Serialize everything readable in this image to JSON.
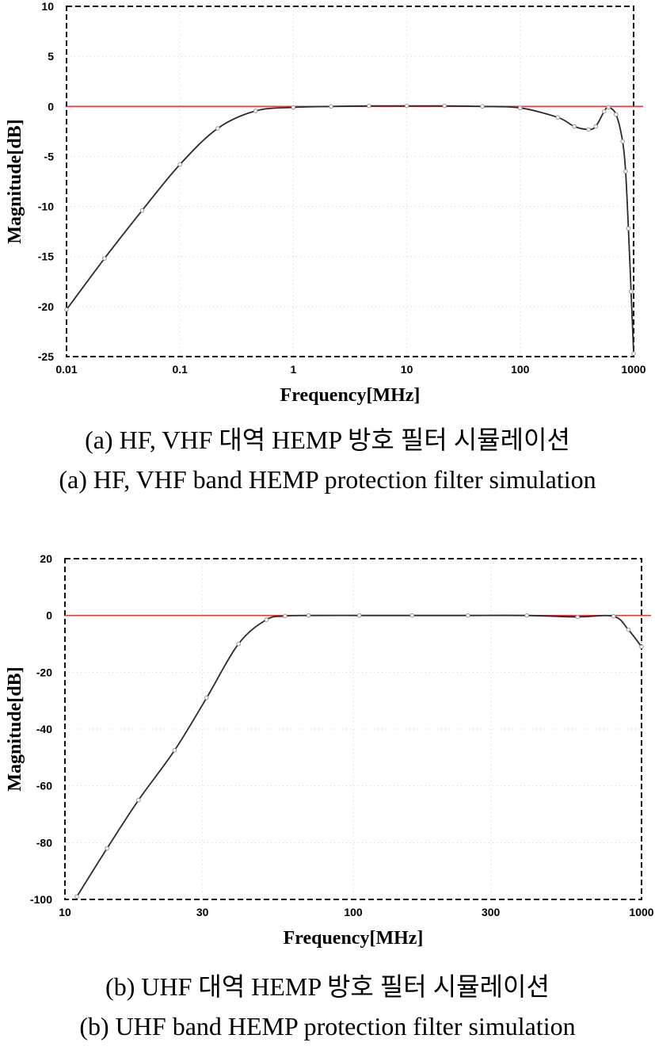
{
  "chart_data": [
    {
      "type": "line",
      "title": "",
      "xlabel": "Frequency[MHz]",
      "ylabel": "Magnitude[dB]",
      "xscale": "log",
      "xlim": [
        0.01,
        1000
      ],
      "ylim": [
        -25,
        10
      ],
      "x_ticks": [
        "0.01",
        "0.1",
        "1",
        "10",
        "100",
        "1000"
      ],
      "y_ticks": [
        "10",
        "5",
        "0",
        "-5",
        "-10",
        "-15",
        "-20",
        "-25"
      ],
      "grid": "dotted",
      "reference_line": {
        "y": 0,
        "color": "#e03c3c"
      },
      "series": [
        {
          "color": "#2b2b2b",
          "x": [
            0.01,
            0.0216,
            0.0464,
            0.1,
            0.215,
            0.464,
            1,
            2.15,
            4.64,
            10,
            21.5,
            46.4,
            100,
            215,
            300,
            400,
            464,
            550,
            600,
            700,
            800,
            850,
            900,
            950,
            1000
          ],
          "y": [
            -20.3,
            -15.2,
            -10.4,
            -5.8,
            -2.2,
            -0.45,
            -0.1,
            0,
            0.05,
            0.05,
            0.05,
            0,
            -0.15,
            -1.1,
            -2.0,
            -2.3,
            -2.0,
            -0.5,
            -0.1,
            -0.8,
            -3.5,
            -6.5,
            -12.2,
            -18.5,
            -24.7
          ]
        }
      ]
    },
    {
      "type": "line",
      "title": "",
      "xlabel": "Frequency[MHz]",
      "ylabel": "Magnitude[dB]",
      "xscale": "log",
      "xlim": [
        10,
        1000
      ],
      "ylim": [
        -100,
        20
      ],
      "x_ticks": [
        "10",
        "30",
        "100",
        "300",
        "1000"
      ],
      "y_ticks": [
        "20",
        "0",
        "-20",
        "-40",
        "-60",
        "-80",
        "-100"
      ],
      "grid": "dotted",
      "reference_line": {
        "y": 0,
        "color": "#e03c3c"
      },
      "series": [
        {
          "color": "#2b2b2b",
          "x": [
            11,
            14,
            18,
            24,
            31,
            40,
            50,
            58,
            70,
            105,
            160,
            250,
            400,
            600,
            800,
            900,
            1000
          ],
          "y": [
            -99,
            -82,
            -65,
            -47.5,
            -29,
            -10,
            -1.5,
            -0.2,
            0,
            0,
            0,
            0,
            0,
            -0.5,
            -0.3,
            -5,
            -11
          ]
        }
      ]
    }
  ],
  "captions": {
    "a_ko": "(a) HF, VHF 대역 HEMP 방호 필터 시뮬레이션",
    "a_en": "(a) HF, VHF band HEMP protection filter simulation",
    "b_ko": "(b) UHF 대역 HEMP 방호 필터 시뮬레이션",
    "b_en": "(b) UHF band HEMP protection filter simulation"
  }
}
